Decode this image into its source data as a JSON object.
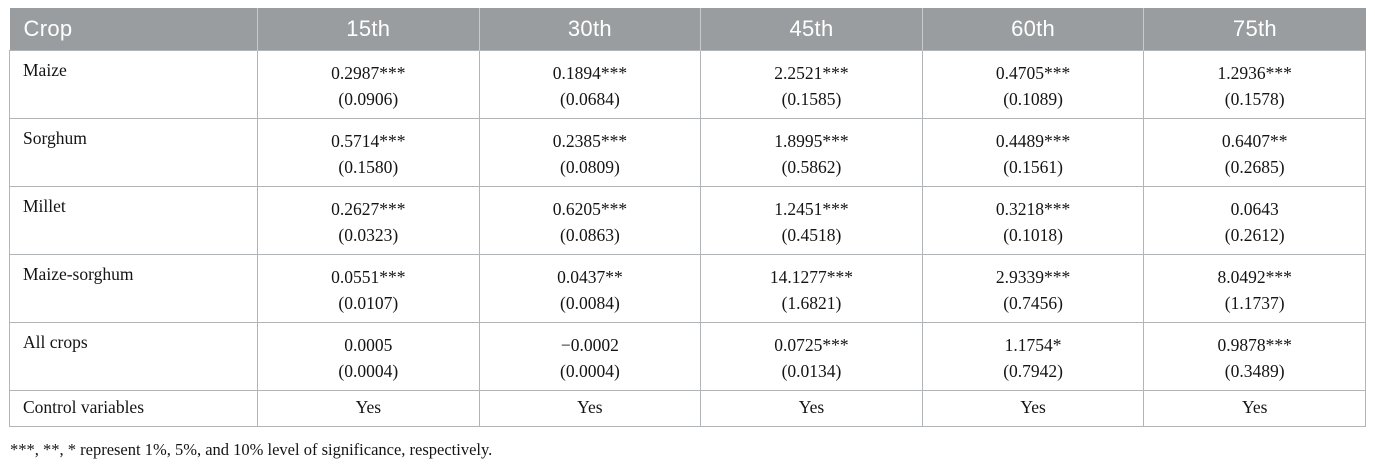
{
  "table": {
    "columns": [
      "Crop",
      "15th",
      "30th",
      "45th",
      "60th",
      "75th"
    ],
    "rows": [
      {
        "label": "Maize",
        "cells": [
          {
            "estimate": "0.2987***",
            "se": "(0.0906)"
          },
          {
            "estimate": "0.1894***",
            "se": "(0.0684)"
          },
          {
            "estimate": "2.2521***",
            "se": "(0.1585)"
          },
          {
            "estimate": "0.4705***",
            "se": "(0.1089)"
          },
          {
            "estimate": "1.2936***",
            "se": "(0.1578)"
          }
        ]
      },
      {
        "label": "Sorghum",
        "cells": [
          {
            "estimate": "0.5714***",
            "se": "(0.1580)"
          },
          {
            "estimate": "0.2385***",
            "se": "(0.0809)"
          },
          {
            "estimate": "1.8995***",
            "se": "(0.5862)"
          },
          {
            "estimate": "0.4489***",
            "se": "(0.1561)"
          },
          {
            "estimate": "0.6407**",
            "se": "(0.2685)"
          }
        ]
      },
      {
        "label": "Millet",
        "cells": [
          {
            "estimate": "0.2627***",
            "se": "(0.0323)"
          },
          {
            "estimate": "0.6205***",
            "se": "(0.0863)"
          },
          {
            "estimate": "1.2451***",
            "se": "(0.4518)"
          },
          {
            "estimate": "0.3218***",
            "se": "(0.1018)"
          },
          {
            "estimate": "0.0643",
            "se": "(0.2612)"
          }
        ]
      },
      {
        "label": "Maize-sorghum",
        "cells": [
          {
            "estimate": "0.0551***",
            "se": "(0.0107)"
          },
          {
            "estimate": "0.0437**",
            "se": "(0.0084)"
          },
          {
            "estimate": "14.1277***",
            "se": "(1.6821)"
          },
          {
            "estimate": "2.9339***",
            "se": "(0.7456)"
          },
          {
            "estimate": "8.0492***",
            "se": "(1.1737)"
          }
        ]
      },
      {
        "label": "All crops",
        "cells": [
          {
            "estimate": "0.0005",
            "se": "(0.0004)"
          },
          {
            "estimate": "−0.0002",
            "se": "(0.0004)"
          },
          {
            "estimate": "0.0725***",
            "se": "(0.0134)"
          },
          {
            "estimate": "1.1754*",
            "se": "(0.7942)"
          },
          {
            "estimate": "0.9878***",
            "se": "(0.3489)"
          }
        ]
      }
    ],
    "control_row": {
      "label": "Control variables",
      "values": [
        "Yes",
        "Yes",
        "Yes",
        "Yes",
        "Yes"
      ]
    },
    "footnote": "***, **, * represent 1%, 5%, and 10% level of significance, respectively."
  },
  "colors": {
    "header_bg": "#999d9f",
    "header_text": "#ffffff",
    "border": "#b2b5b7",
    "body_text": "#141414"
  }
}
